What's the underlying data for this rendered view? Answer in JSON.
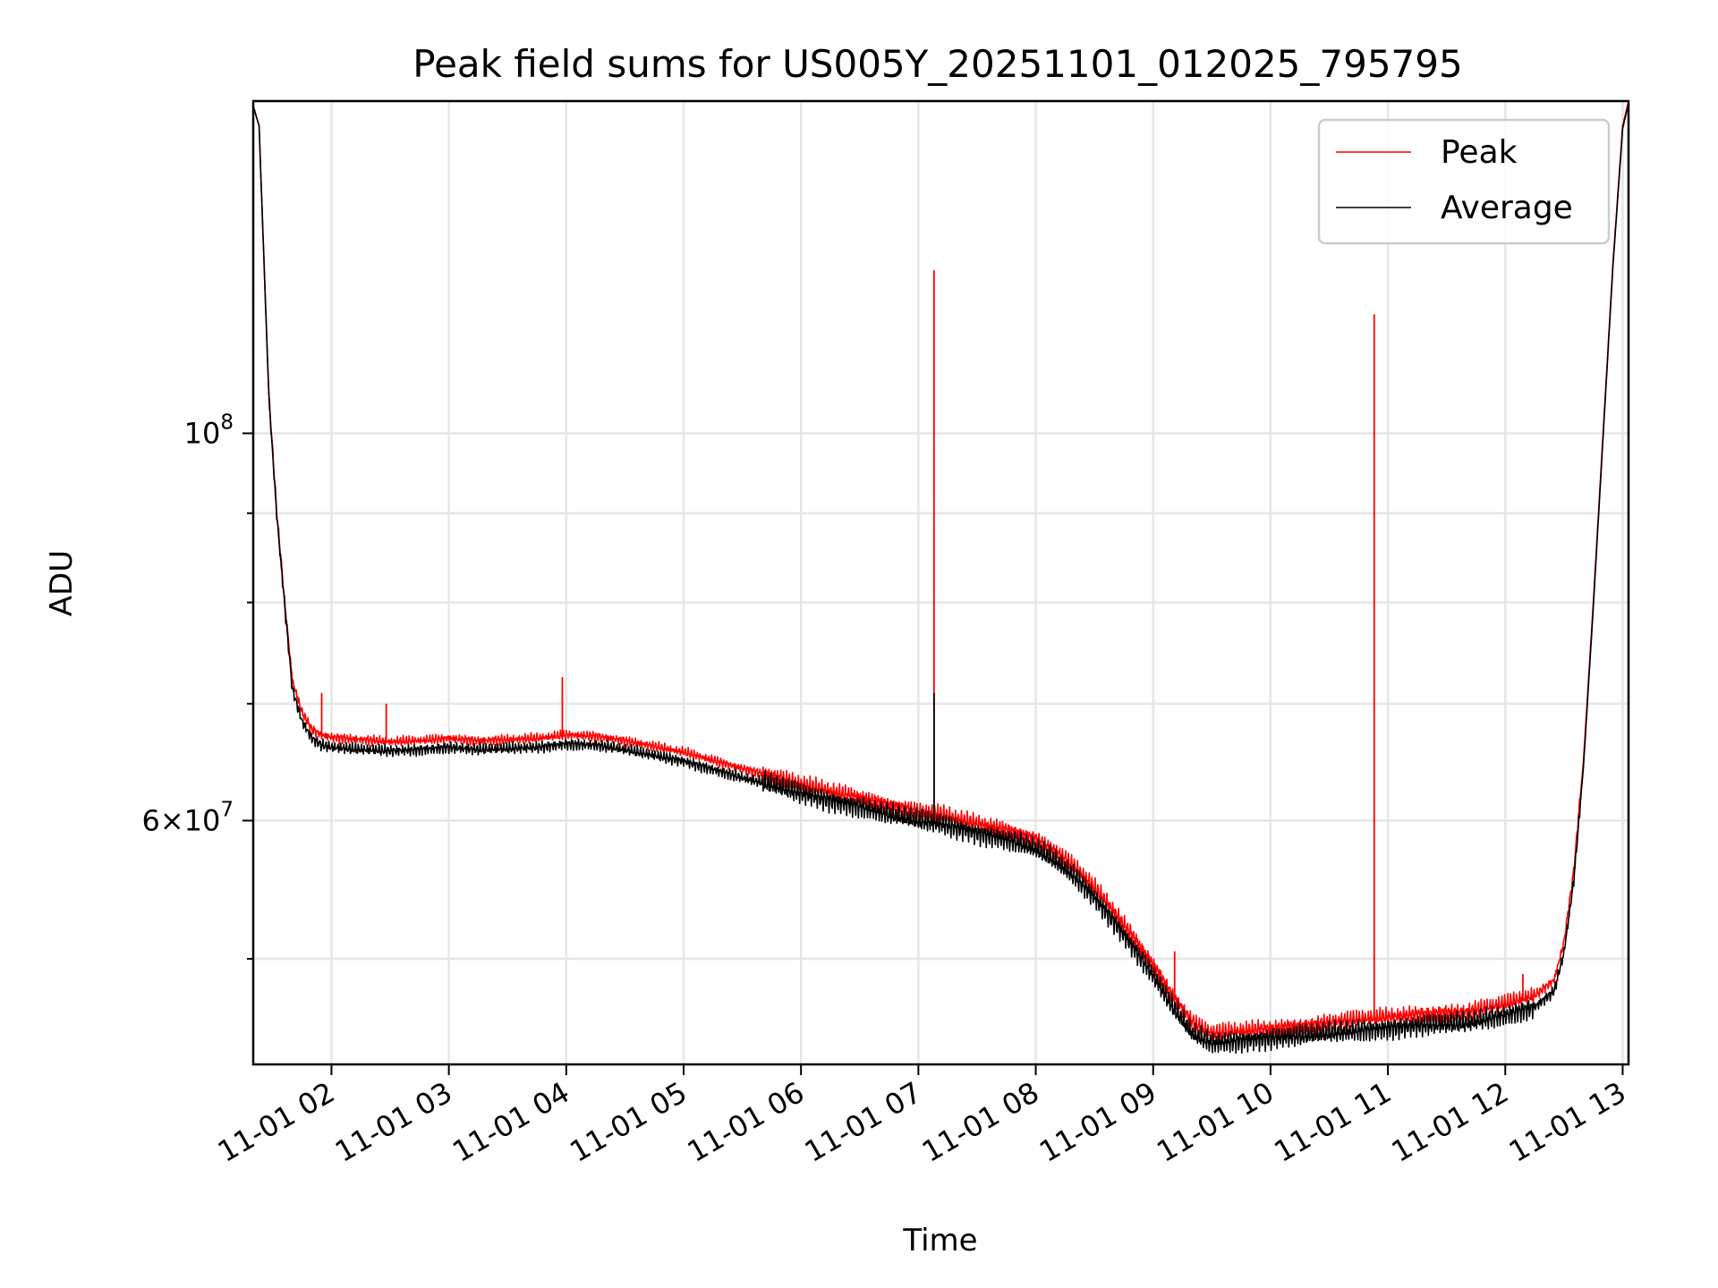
{
  "chart_data": {
    "type": "line",
    "title": "Peak field sums for US005Y_20251101_012025_795795",
    "xlabel": "Time",
    "ylabel": "ADU",
    "y_scale": "log",
    "grid": true,
    "legend_position": "top-right",
    "xlim": [
      "2025-11-01 01:20",
      "2025-11-01 13:03"
    ],
    "ylim": [
      43500000,
      155000000
    ],
    "x_ticks": [
      "11-01 02",
      "11-01 03",
      "11-01 04",
      "11-01 05",
      "11-01 06",
      "11-01 07",
      "11-01 08",
      "11-01 09",
      "11-01 10",
      "11-01 11",
      "11-01 12",
      "11-01 13"
    ],
    "x_tick_rotation_deg": 30,
    "y_tick_labels": [
      {
        "value": 100000000,
        "base": "10",
        "exp": "8"
      },
      {
        "value": 60000000,
        "base": "6×10",
        "exp": "7"
      }
    ],
    "y_minor_ticks": [
      50000000,
      70000000,
      80000000,
      90000000
    ],
    "series": [
      {
        "name": "Peak",
        "color": "#ff0000",
        "x": [
          "01:20",
          "01:23",
          "01:25",
          "01:28",
          "01:32",
          "01:36",
          "01:40",
          "01:45",
          "01:50",
          "01:55",
          "02:00",
          "02:15",
          "02:30",
          "02:45",
          "03:00",
          "03:15",
          "03:30",
          "03:45",
          "04:00",
          "04:15",
          "04:30",
          "04:45",
          "05:00",
          "05:15",
          "05:30",
          "05:45",
          "06:00",
          "06:15",
          "06:30",
          "06:45",
          "07:00",
          "07:10",
          "07:20",
          "07:30",
          "07:40",
          "07:50",
          "08:00",
          "08:10",
          "08:20",
          "08:30",
          "08:40",
          "08:50",
          "09:00",
          "09:10",
          "09:20",
          "09:30",
          "09:40",
          "10:00",
          "10:20",
          "10:40",
          "11:00",
          "11:20",
          "11:40",
          "12:00",
          "12:15",
          "12:25",
          "12:30",
          "12:35",
          "12:40",
          "12:45",
          "12:50",
          "12:55",
          "13:00",
          "13:03"
        ],
        "y": [
          154000000,
          150000000,
          130000000,
          105000000,
          90000000,
          80000000,
          72000000,
          69000000,
          67500000,
          67000000,
          66800000,
          66600000,
          66400000,
          66500000,
          66700000,
          66500000,
          66600000,
          66700000,
          67000000,
          66900000,
          66500000,
          66000000,
          65500000,
          64800000,
          64100000,
          63500000,
          62800000,
          62200000,
          61700000,
          61100000,
          60600000,
          60400000,
          60000000,
          59600000,
          59300000,
          58900000,
          58400000,
          57500000,
          56300000,
          54800000,
          53100000,
          51300000,
          49500000,
          47500000,
          45900000,
          45200000,
          45300000,
          45500000,
          45700000,
          46000000,
          46200000,
          46400000,
          46500000,
          47000000,
          47500000,
          48500000,
          51000000,
          56000000,
          65000000,
          80000000,
          100000000,
          125000000,
          150000000,
          155000000
        ]
      },
      {
        "name": "Average",
        "color": "#000000",
        "x": [
          "01:20",
          "01:23",
          "01:25",
          "01:28",
          "01:32",
          "01:36",
          "01:40",
          "01:45",
          "01:50",
          "01:55",
          "02:00",
          "02:15",
          "02:30",
          "02:45",
          "03:00",
          "03:15",
          "03:30",
          "03:45",
          "04:00",
          "04:15",
          "04:30",
          "04:45",
          "05:00",
          "05:15",
          "05:30",
          "05:45",
          "06:00",
          "06:15",
          "06:30",
          "06:45",
          "07:00",
          "07:10",
          "07:20",
          "07:30",
          "07:40",
          "07:50",
          "08:00",
          "08:10",
          "08:20",
          "08:30",
          "08:40",
          "08:50",
          "09:00",
          "09:10",
          "09:20",
          "09:30",
          "09:40",
          "10:00",
          "10:20",
          "10:40",
          "11:00",
          "11:20",
          "11:40",
          "12:00",
          "12:15",
          "12:25",
          "12:30",
          "12:35",
          "12:40",
          "12:45",
          "12:50",
          "12:55",
          "13:00",
          "13:03"
        ],
        "y": [
          154000000,
          150000000,
          130000000,
          105000000,
          90000000,
          80000000,
          71500000,
          68500000,
          67000000,
          66400000,
          66200000,
          66000000,
          65900000,
          66000000,
          66200000,
          66000000,
          66100000,
          66200000,
          66500000,
          66400000,
          66000000,
          65500000,
          65000000,
          64300000,
          63600000,
          63000000,
          62300000,
          61700000,
          61200000,
          60600000,
          60100000,
          59900000,
          59500000,
          59100000,
          58800000,
          58400000,
          57900000,
          57000000,
          55800000,
          54300000,
          52600000,
          50800000,
          49000000,
          47000000,
          45400000,
          44800000,
          44900000,
          45100000,
          45300000,
          45500000,
          45700000,
          45900000,
          46000000,
          46500000,
          47000000,
          48000000,
          50500000,
          55500000,
          64500000,
          79500000,
          99500000,
          124500000,
          149500000,
          154500000
        ]
      }
    ],
    "spikes": [
      {
        "series": "Peak",
        "x": "07:08",
        "y": 124000000
      },
      {
        "series": "Peak",
        "x": "10:53",
        "y": 117000000
      },
      {
        "series": "Peak",
        "x": "03:58",
        "y": 72500000
      },
      {
        "series": "Peak",
        "x": "01:55",
        "y": 71000000
      },
      {
        "series": "Peak",
        "x": "02:28",
        "y": 70000000
      },
      {
        "series": "Peak",
        "x": "09:11",
        "y": 50500000
      },
      {
        "series": "Peak",
        "x": "12:09",
        "y": 49000000
      },
      {
        "series": "Average",
        "x": "07:08",
        "y": 71000000
      }
    ]
  }
}
